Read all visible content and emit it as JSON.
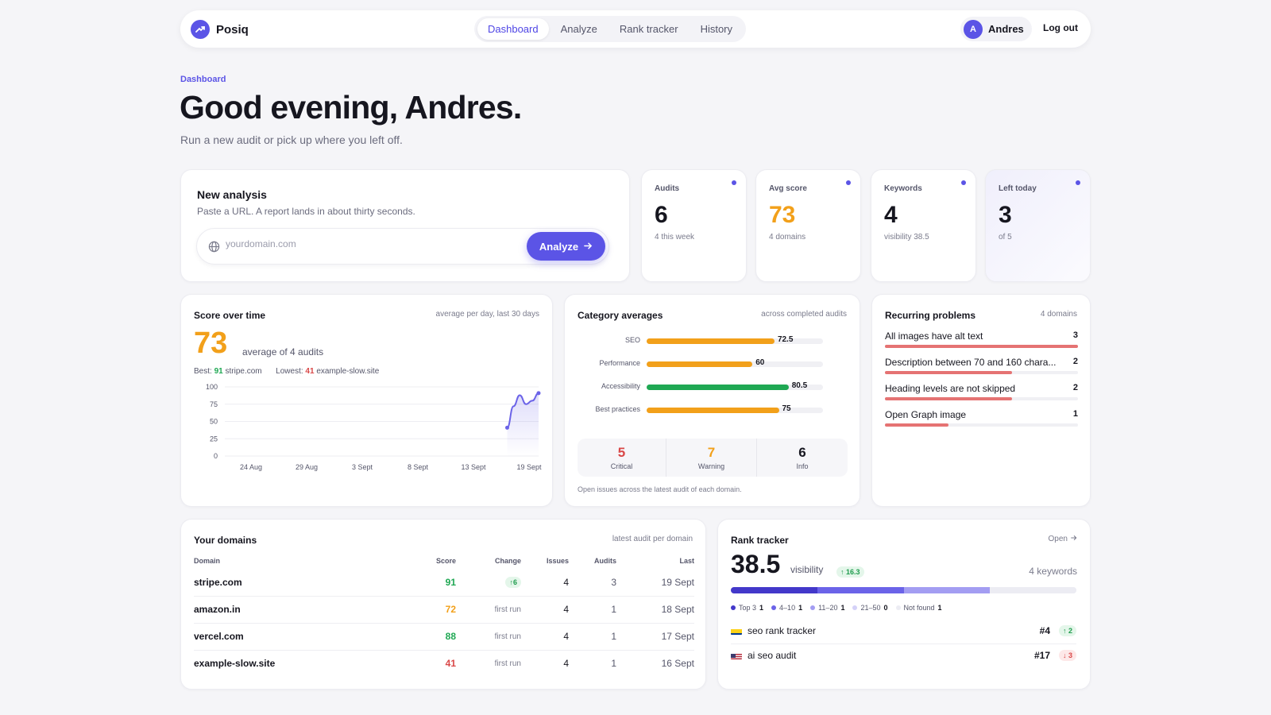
{
  "nav": {
    "brand": "Posiq",
    "tabs": [
      {
        "label": "Dashboard",
        "active": true
      },
      {
        "label": "Analyze",
        "active": false
      },
      {
        "label": "Rank tracker",
        "active": false
      },
      {
        "label": "History",
        "active": false
      }
    ],
    "user": {
      "initial": "A",
      "name": "Andres"
    },
    "logout": "Log out"
  },
  "header": {
    "breadcrumb": "Dashboard",
    "greeting": "Good evening, Andres.",
    "subtitle": "Run a new audit or pick up where you left off."
  },
  "new_analysis": {
    "title": "New analysis",
    "description": "Paste a URL. A report lands in about thirty seconds.",
    "placeholder": "yourdomain.com",
    "button": "Analyze"
  },
  "stats": [
    {
      "label": "Audits",
      "value": "6",
      "sub": "4 this week",
      "color": "#16161f"
    },
    {
      "label": "Avg score",
      "value": "73",
      "sub": "4 domains",
      "color": "#f2a01a"
    },
    {
      "label": "Keywords",
      "value": "4",
      "sub": "visibility 38.5",
      "color": "#16161f"
    },
    {
      "label": "Left today",
      "value": "3",
      "sub": "of 5",
      "color": "#16161f"
    }
  ],
  "score_over_time": {
    "title": "Score over time",
    "note": "average per day, last 30 days",
    "value": "73",
    "value_label": "average of 4 audits",
    "best_label": "Best:",
    "best_score": "91",
    "best_domain": "stripe.com",
    "lowest_label": "Lowest:",
    "lowest_score": "41",
    "lowest_domain": "example-slow.site"
  },
  "chart_data": {
    "type": "area",
    "x": [
      "19 Sept (a)",
      "19 Sept (b)",
      "19 Sept (c)",
      "19 Sept (d)",
      "19 Sept (e)",
      "19 Sept (f)"
    ],
    "y": [
      41,
      72,
      88,
      75,
      80,
      91
    ],
    "x_start_fraction": 0.9,
    "x_ticks": [
      "24 Aug",
      "29 Aug",
      "3 Sept",
      "8 Sept",
      "13 Sept",
      "19 Sept"
    ],
    "y_ticks": [
      100,
      75,
      50,
      25,
      0
    ],
    "ylim": [
      0,
      100
    ],
    "color": "#6b63e8",
    "grid": true
  },
  "categories": {
    "title": "Category averages",
    "note": "across completed audits",
    "items": [
      {
        "label": "SEO",
        "value": 72.5,
        "color": "#f2a01a"
      },
      {
        "label": "Performance",
        "value": 60,
        "color": "#f2a01a"
      },
      {
        "label": "Accessibility",
        "value": 80.5,
        "color": "#1fa853"
      },
      {
        "label": "Best practices",
        "value": 75,
        "color": "#f2a01a"
      }
    ],
    "severity": [
      {
        "num": "5",
        "label": "Critical",
        "color": "#d94848"
      },
      {
        "num": "7",
        "label": "Warning",
        "color": "#f2a01a"
      },
      {
        "num": "6",
        "label": "Info",
        "color": "#16161f"
      }
    ],
    "footnote": "Open issues across the latest audit of each domain."
  },
  "problems": {
    "title": "Recurring problems",
    "note": "4 domains",
    "items": [
      {
        "text": "All images have alt text",
        "count": "3",
        "fraction": 1.0
      },
      {
        "text": "Description between 70 and 160 chara...",
        "count": "2",
        "fraction": 0.66
      },
      {
        "text": "Heading levels are not skipped",
        "count": "2",
        "fraction": 0.66
      },
      {
        "text": "Open Graph image",
        "count": "1",
        "fraction": 0.33
      }
    ]
  },
  "domains": {
    "title": "Your domains",
    "note": "latest audit per domain",
    "columns": [
      "Domain",
      "Score",
      "Change",
      "Issues",
      "Audits",
      "Last"
    ],
    "rows": [
      {
        "domain": "stripe.com",
        "score": "91",
        "score_color": "#1fa853",
        "change": "6",
        "change_type": "up",
        "issues": "4",
        "audits": "3",
        "last": "19 Sept"
      },
      {
        "domain": "amazon.in",
        "score": "72",
        "score_color": "#f2a01a",
        "change": "first run",
        "change_type": "text",
        "issues": "4",
        "audits": "1",
        "last": "18 Sept"
      },
      {
        "domain": "vercel.com",
        "score": "88",
        "score_color": "#1fa853",
        "change": "first run",
        "change_type": "text",
        "issues": "4",
        "audits": "1",
        "last": "17 Sept"
      },
      {
        "domain": "example-slow.site",
        "score": "41",
        "score_color": "#d94848",
        "change": "first run",
        "change_type": "text",
        "issues": "4",
        "audits": "1",
        "last": "16 Sept"
      }
    ]
  },
  "rank": {
    "title": "Rank tracker",
    "open": "Open",
    "value": "38.5",
    "value_label": "visibility",
    "delta": "16.3",
    "keywords": "4 keywords",
    "buckets": [
      {
        "label": "Top 3",
        "count": "1",
        "color": "#4338ca",
        "fraction": 0.25
      },
      {
        "label": "4–10",
        "count": "1",
        "color": "#6b63e8",
        "fraction": 0.25
      },
      {
        "label": "11–20",
        "count": "1",
        "color": "#a39df2",
        "fraction": 0.25
      },
      {
        "label": "21–50",
        "count": "0",
        "color": "#d4d1f8",
        "fraction": 0
      },
      {
        "label": "Not found",
        "count": "1",
        "color": "#ececf3",
        "fraction": 0.25
      }
    ],
    "items": [
      {
        "flag": "colombia-flag-icon",
        "keyword": "seo rank tracker",
        "rank": "#4",
        "delta": "2",
        "dir": "up"
      },
      {
        "flag": "us-flag-icon",
        "keyword": "ai seo audit",
        "rank": "#17",
        "delta": "3",
        "dir": "down"
      }
    ]
  }
}
